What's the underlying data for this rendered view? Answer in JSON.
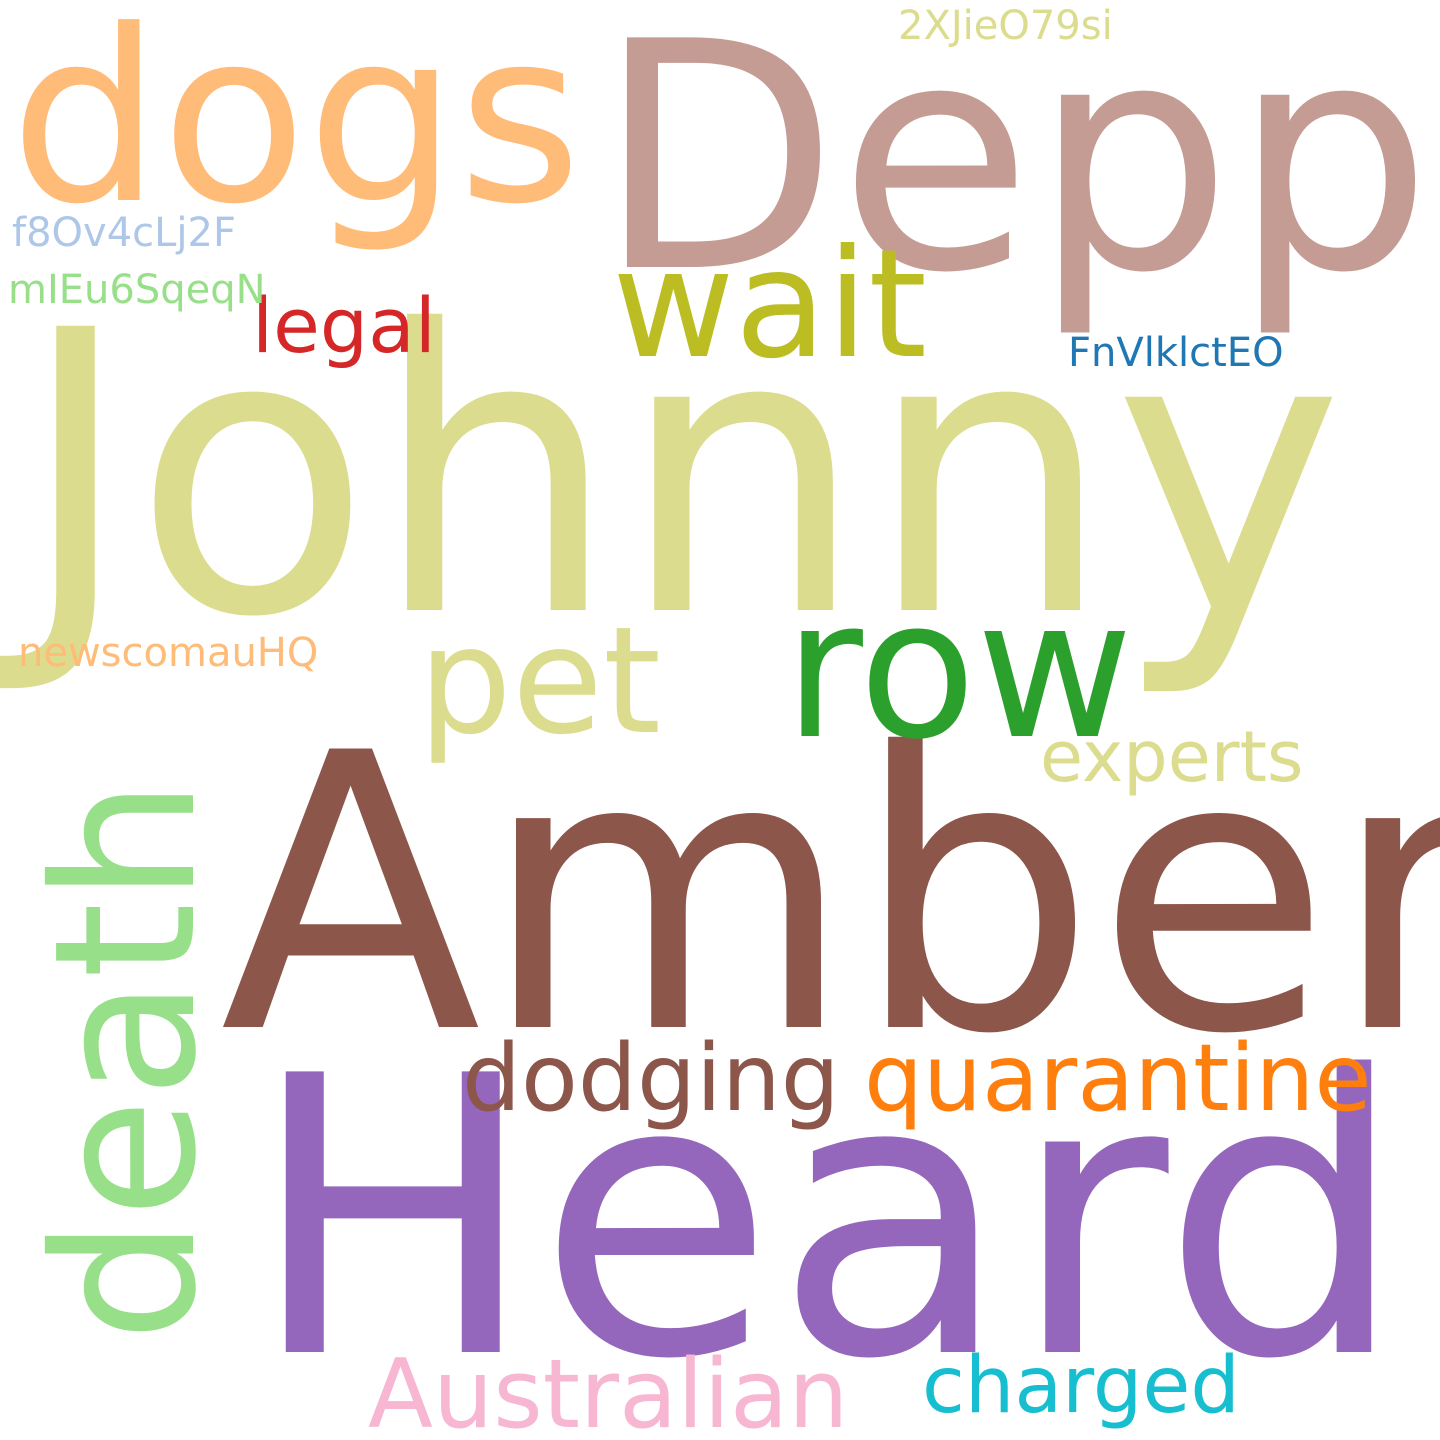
{
  "words": [
    {
      "key": "johnny",
      "text": "Johnny",
      "color": "#dbdc8d"
    },
    {
      "key": "amber",
      "text": "Amber",
      "color": "#8c564b"
    },
    {
      "key": "heard",
      "text": "Heard",
      "color": "#9467bd"
    },
    {
      "key": "depp",
      "text": "Depp",
      "color": "#c49c94"
    },
    {
      "key": "dogs",
      "text": "dogs",
      "color": "#ffbb78"
    },
    {
      "key": "row",
      "text": "row",
      "color": "#2ca02c"
    },
    {
      "key": "death",
      "text": "death",
      "color": "#98df8a"
    },
    {
      "key": "wait",
      "text": "wait",
      "color": "#bcbd22"
    },
    {
      "key": "pet",
      "text": "pet",
      "color": "#dbdc8d"
    },
    {
      "key": "dodging",
      "text": "dodging",
      "color": "#8c564b"
    },
    {
      "key": "quarantine",
      "text": "quarantine",
      "color": "#ff7f0e"
    },
    {
      "key": "australian",
      "text": "Australian",
      "color": "#f7b6d2"
    },
    {
      "key": "charged",
      "text": "charged",
      "color": "#17becf"
    },
    {
      "key": "experts",
      "text": "experts",
      "color": "#dbdc8d"
    },
    {
      "key": "legal",
      "text": "legal",
      "color": "#d62728"
    },
    {
      "key": "fnv",
      "text": "FnVlklctEO",
      "color": "#1f77b4"
    },
    {
      "key": "2xj",
      "text": "2XJieO79si",
      "color": "#dbdc8d"
    },
    {
      "key": "f8o",
      "text": "f8Ov4cLj2F",
      "color": "#aec7e8"
    },
    {
      "key": "mie",
      "text": "mIEu6SqeqN",
      "color": "#98df8a"
    },
    {
      "key": "news",
      "text": "newscomauHQ",
      "color": "#ffbb78"
    }
  ]
}
